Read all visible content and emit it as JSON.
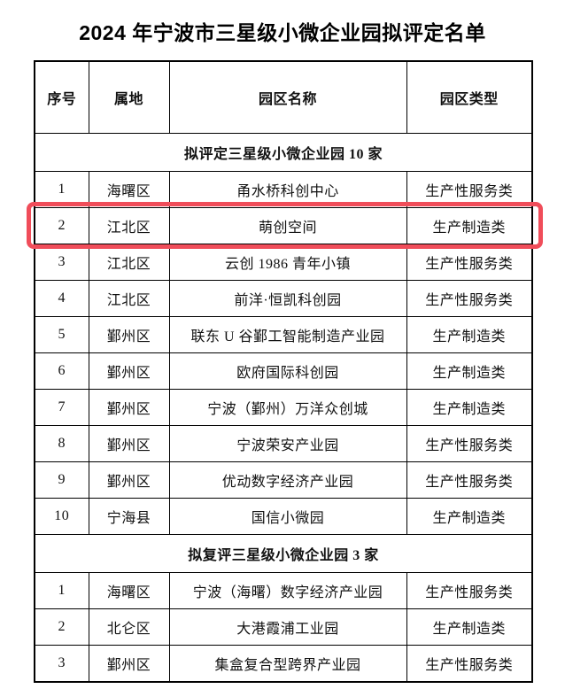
{
  "title": "2024 年宁波市三星级小微企业园拟评定名单",
  "table": {
    "columns": [
      "序号",
      "属地",
      "园区名称",
      "园区类型"
    ],
    "sections": [
      {
        "header": "拟评定三星级小微企业园 10 家",
        "rows": [
          [
            "1",
            "海曙区",
            "甬水桥科创中心",
            "生产性服务类"
          ],
          [
            "2",
            "江北区",
            "萌创空间",
            "生产制造类"
          ],
          [
            "3",
            "江北区",
            "云创 1986 青年小镇",
            "生产性服务类"
          ],
          [
            "4",
            "江北区",
            "前洋·恒凯科创园",
            "生产性服务类"
          ],
          [
            "5",
            "鄞州区",
            "联东 U 谷鄞工智能制造产业园",
            "生产制造类"
          ],
          [
            "6",
            "鄞州区",
            "欧府国际科创园",
            "生产制造类"
          ],
          [
            "7",
            "鄞州区",
            "宁波（鄞州）万洋众创城",
            "生产制造类"
          ],
          [
            "8",
            "鄞州区",
            "宁波荣安产业园",
            "生产性服务类"
          ],
          [
            "9",
            "鄞州区",
            "优动数字经济产业园",
            "生产性服务类"
          ],
          [
            "10",
            "宁海县",
            "国信小微园",
            "生产制造类"
          ]
        ]
      },
      {
        "header": "拟复评三星级小微企业园 3 家",
        "rows": [
          [
            "1",
            "海曙区",
            "宁波（海曙）数字经济产业园",
            "生产性服务类"
          ],
          [
            "2",
            "北仑区",
            "大港霞浦工业园",
            "生产制造类"
          ],
          [
            "3",
            "鄞州区",
            "集盒复合型跨界产业园",
            "生产性服务类"
          ]
        ]
      }
    ]
  },
  "highlight": {
    "section": 0,
    "row": 1,
    "color": "#f04d5a"
  }
}
